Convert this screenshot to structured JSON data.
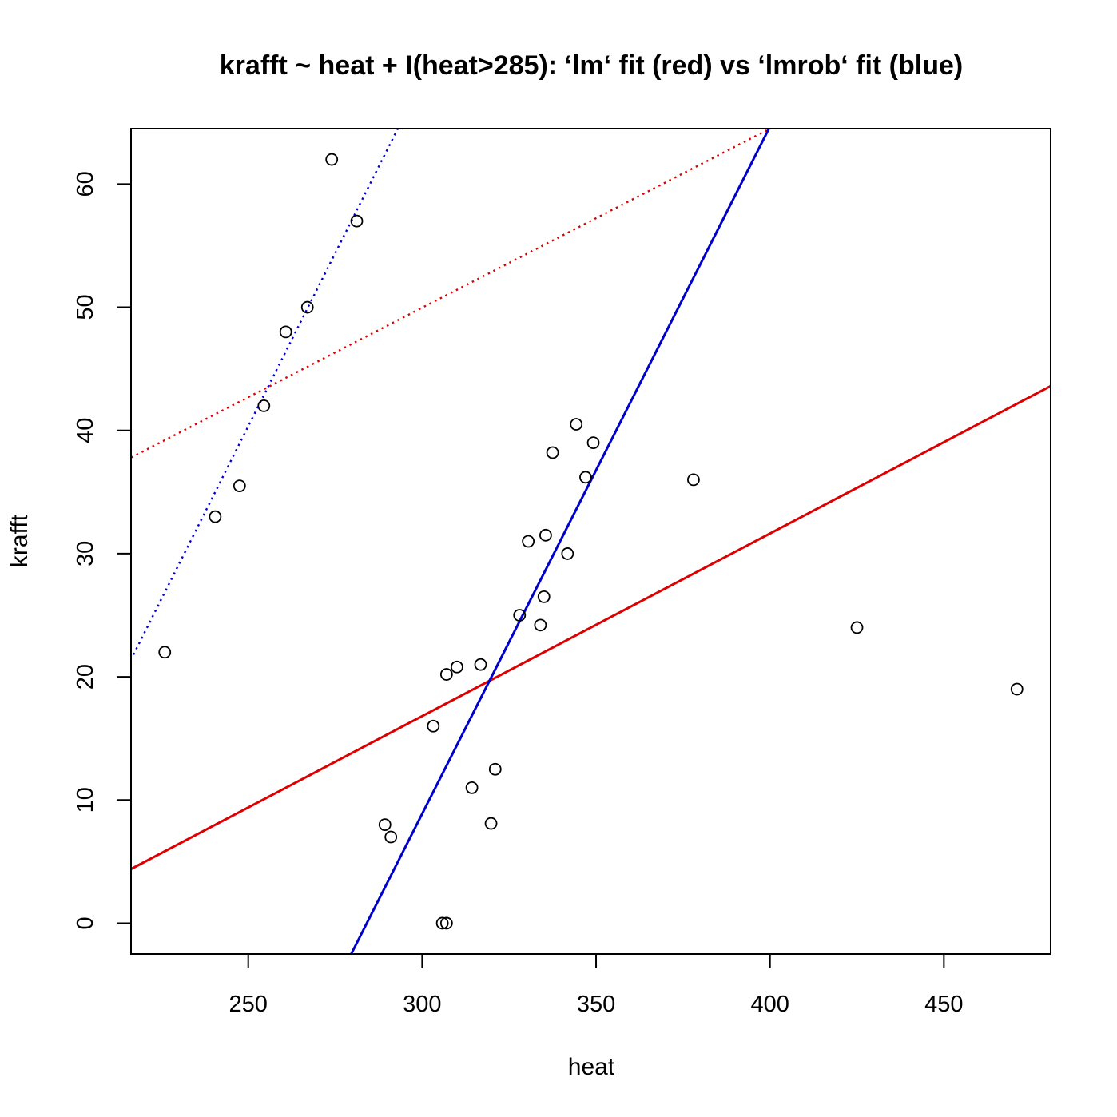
{
  "chart_data": {
    "type": "scatter",
    "title": "krafft ~ heat + I(heat>285): ‘lm‘ fit (red) vs ‘lmrob‘ fit (blue)",
    "xlabel": "heat",
    "ylabel": "krafft",
    "xlim": [
      216.3,
      480.7
    ],
    "ylim": [
      -2.5,
      64.5
    ],
    "xticks": [
      250,
      300,
      350,
      400,
      450
    ],
    "yticks": [
      0,
      10,
      20,
      30,
      40,
      50,
      60
    ],
    "grid": false,
    "legend": "none",
    "points": [
      {
        "x": 226.0,
        "y": 22.0
      },
      {
        "x": 240.5,
        "y": 33.0
      },
      {
        "x": 247.5,
        "y": 35.5
      },
      {
        "x": 254.5,
        "y": 42.0
      },
      {
        "x": 260.8,
        "y": 48.0
      },
      {
        "x": 267.0,
        "y": 50.0
      },
      {
        "x": 274.0,
        "y": 62.0
      },
      {
        "x": 281.2,
        "y": 57.0
      },
      {
        "x": 289.3,
        "y": 8.0
      },
      {
        "x": 291.0,
        "y": 7.0
      },
      {
        "x": 303.2,
        "y": 16.0
      },
      {
        "x": 305.8,
        "y": 0.0
      },
      {
        "x": 307.0,
        "y": 0.0
      },
      {
        "x": 307.0,
        "y": 20.2
      },
      {
        "x": 310.0,
        "y": 20.8
      },
      {
        "x": 314.3,
        "y": 11.0
      },
      {
        "x": 316.8,
        "y": 21.0
      },
      {
        "x": 319.8,
        "y": 8.1
      },
      {
        "x": 321.0,
        "y": 12.5
      },
      {
        "x": 328.0,
        "y": 25.0
      },
      {
        "x": 330.5,
        "y": 31.0
      },
      {
        "x": 334.0,
        "y": 24.2
      },
      {
        "x": 335.0,
        "y": 26.5
      },
      {
        "x": 335.5,
        "y": 31.5
      },
      {
        "x": 337.5,
        "y": 38.2
      },
      {
        "x": 341.8,
        "y": 30.0
      },
      {
        "x": 344.3,
        "y": 40.5
      },
      {
        "x": 347.0,
        "y": 36.2
      },
      {
        "x": 349.2,
        "y": 39.0
      },
      {
        "x": 378.0,
        "y": 36.0
      },
      {
        "x": 425.0,
        "y": 24.0
      },
      {
        "x": 471.0,
        "y": 19.0
      }
    ],
    "lines": [
      {
        "color": "#dd0000",
        "style": "solid",
        "x1": 216.3,
        "y1": 4.4,
        "x2": 480.7,
        "y2": 43.6
      },
      {
        "color": "#dd0000",
        "style": "dotted",
        "x1": 216.3,
        "y1": 37.8,
        "x2": 400.0,
        "y2": 64.5
      },
      {
        "color": "#0000cc",
        "style": "solid",
        "x1": 279.6,
        "y1": -2.5,
        "x2": 399.7,
        "y2": 64.5
      },
      {
        "color": "#0000cc",
        "style": "dotted",
        "x1": 217.0,
        "y1": 21.8,
        "x2": 293.0,
        "y2": 64.5
      }
    ]
  }
}
